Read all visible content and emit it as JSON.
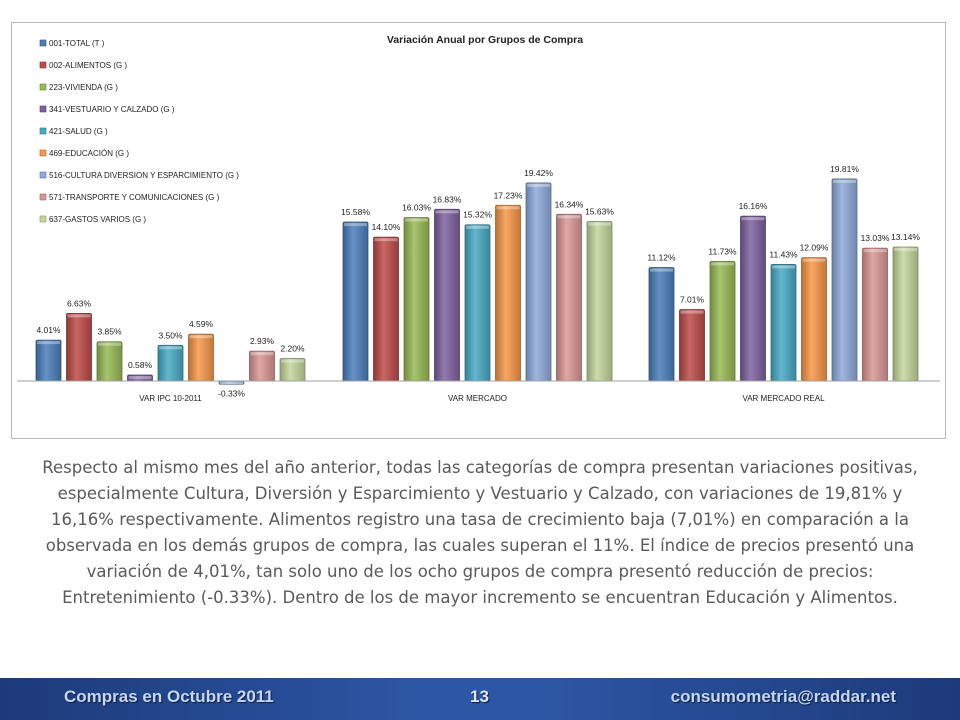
{
  "chart_data": {
    "type": "bar",
    "title": "Variación Anual por Grupos de Compra",
    "categories": [
      "VAR IPC 10-2011",
      "VAR MERCADO",
      "VAR MERCADO REAL"
    ],
    "series": [
      {
        "name": "001-TOTAL (T )",
        "color": "#4a7ebb",
        "values": [
          4.01,
          15.58,
          11.12
        ],
        "labels": [
          "4.01%",
          "15.58%",
          "11.12%"
        ]
      },
      {
        "name": "002-ALIMENTOS (G )",
        "color": "#be4b48",
        "values": [
          6.63,
          14.1,
          7.01
        ],
        "labels": [
          "6.63%",
          "14.10%",
          "7.01%"
        ]
      },
      {
        "name": "223-VIVIENDA (G )",
        "color": "#98b954",
        "values": [
          3.85,
          16.03,
          11.73
        ],
        "labels": [
          "3.85%",
          "16.03%",
          "11.73%"
        ]
      },
      {
        "name": "341-VESTUARIO Y CALZADO (G )",
        "color": "#7d60a0",
        "values": [
          0.58,
          16.83,
          16.16
        ],
        "labels": [
          "0.58%",
          "16.83%",
          "16.16%"
        ]
      },
      {
        "name": "421-SALUD (G )",
        "color": "#46aac5",
        "values": [
          3.5,
          15.32,
          11.43
        ],
        "labels": [
          "3.50%",
          "15.32%",
          "11.43%"
        ]
      },
      {
        "name": "469-EDUCACIÓN (G )",
        "color": "#f79646",
        "values": [
          4.59,
          17.23,
          12.09
        ],
        "labels": [
          "4.59%",
          "17.23%",
          "12.09%"
        ]
      },
      {
        "name": "516-CULTURA DIVERSION Y ESPARCIMIENTO (G )",
        "color": "#8ea9db",
        "values": [
          -0.33,
          19.42,
          19.81
        ],
        "labels": [
          "-0.33%",
          "19.42%",
          "19.81%"
        ]
      },
      {
        "name": "571-TRANSPORTE Y COMUNICACIONES (G )",
        "color": "#d99694",
        "values": [
          2.93,
          16.34,
          13.03
        ],
        "labels": [
          "2.93%",
          "16.34%",
          "13.03%"
        ]
      },
      {
        "name": "637-GASTOS VARIOS (G )",
        "color": "#c3d69b",
        "values": [
          2.2,
          15.63,
          13.14
        ],
        "labels": [
          "2.20%",
          "15.63%",
          "13.14%"
        ]
      }
    ],
    "ylim": [
      -0.5,
      20.5
    ],
    "grid": false,
    "legend": "top-left"
  },
  "paragraph": "Respecto al mismo mes del año anterior, todas las categorías de compra presentan variaciones positivas, especialmente Cultura, Diversión y Esparcimiento y Vestuario y Calzado, con variaciones de 19,81% y 16,16% respectivamente. Alimentos registro una tasa de crecimiento baja (7,01%) en comparación a la observada en los demás grupos de compra, las cuales superan el 11%. El índice de precios presentó una variación de 4,01%, tan solo uno de los ocho grupos de compra presentó reducción de precios: Entretenimiento (-0.33%). Dentro de los de mayor incremento se encuentran Educación y Alimentos.",
  "footer": {
    "left": "Compras en Octubre 2011",
    "page": "13",
    "right": "consumometria@raddar.net"
  }
}
